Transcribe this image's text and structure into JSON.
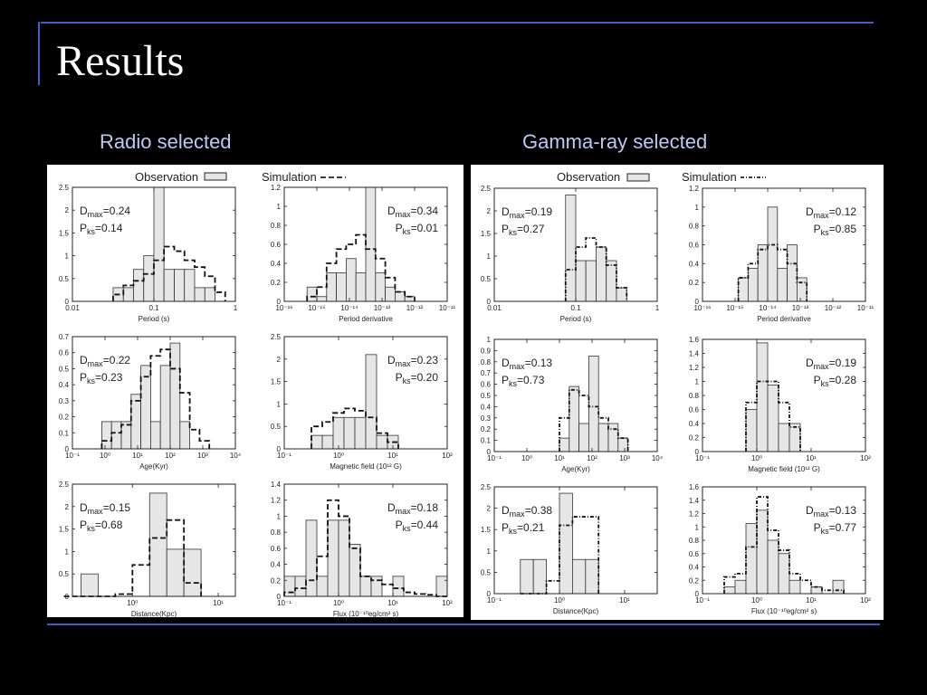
{
  "slide": {
    "title": "Results",
    "panels": [
      {
        "heading": "Radio selected"
      },
      {
        "heading": "Gamma-ray selected"
      }
    ],
    "legend": {
      "observation": "Observation",
      "simulation": "Simulation"
    }
  },
  "colors": {
    "background": "#000000",
    "accent_rule": "#3a62c4",
    "heading": "#bfc8f5",
    "bar_fill": "#e6e6e6"
  },
  "chart_data": [
    {
      "type": "bar",
      "panel": 0,
      "xlabel": "Period (s)",
      "xscale": "log",
      "xlim": [
        0.01,
        1
      ],
      "ylim": [
        0,
        2.5
      ],
      "yticks": [
        0,
        0.5,
        1,
        1.5,
        2,
        2.5
      ],
      "xticks": [
        {
          "v": 0.01,
          "t": "0.01"
        },
        {
          "v": 0.1,
          "t": "0.1"
        },
        {
          "v": 1,
          "t": "1"
        }
      ],
      "stat": {
        "dmax": "0.24",
        "pks": "0.14"
      },
      "stat_pos": "left",
      "edges": [
        0.0316,
        0.0422,
        0.0562,
        0.075,
        0.1,
        0.133,
        0.178,
        0.237,
        0.316,
        0.422,
        0.562,
        0.75
      ],
      "obs": [
        0.3,
        0.3,
        0.7,
        1.0,
        2.5,
        0.7,
        0.7,
        0.7,
        0.3,
        0.3,
        0
      ],
      "sim": [
        0.15,
        0.35,
        0.45,
        0.6,
        0.9,
        1.2,
        1.1,
        0.9,
        0.75,
        0.55,
        0.2
      ]
    },
    {
      "type": "bar",
      "panel": 0,
      "xlabel": "Period derivative",
      "xscale": "log",
      "xlim": [
        -16,
        -11
      ],
      "ylim": [
        0,
        1.2
      ],
      "yticks": [
        0,
        0.2,
        0.4,
        0.6,
        0.8,
        1,
        1.2
      ],
      "xticks": [
        {
          "v": -16,
          "t": "10⁻¹⁶"
        },
        {
          "v": -15,
          "t": "10⁻¹⁵"
        },
        {
          "v": -14,
          "t": "10⁻¹⁴"
        },
        {
          "v": -13,
          "t": "10⁻¹³"
        },
        {
          "v": -12,
          "t": "10⁻¹²"
        },
        {
          "v": -11,
          "t": "10⁻¹¹"
        }
      ],
      "stat": {
        "dmax": "0.34",
        "pks": "0.01"
      },
      "stat_pos": "right",
      "edges": [
        -15.3,
        -15.0,
        -14.7,
        -14.4,
        -14.1,
        -13.8,
        -13.5,
        -13.2,
        -12.9,
        -12.6,
        -12.3,
        -12.0
      ],
      "obs": [
        0.15,
        0.05,
        0.3,
        0.3,
        0.45,
        0.3,
        1.2,
        0.3,
        0.15,
        0.1,
        0.05
      ],
      "sim": [
        0.05,
        0.15,
        0.4,
        0.55,
        0.6,
        0.7,
        0.55,
        0.45,
        0.25,
        0.1,
        0.05
      ]
    },
    {
      "type": "bar",
      "panel": 0,
      "xlabel": "Age(Kyr)",
      "xscale": "log",
      "xlim": [
        -1,
        4
      ],
      "ylim": [
        0,
        0.7
      ],
      "yticks": [
        0,
        0.1,
        0.2,
        0.3,
        0.4,
        0.5,
        0.6,
        0.7
      ],
      "xticks": [
        {
          "v": -1,
          "t": "10⁻¹"
        },
        {
          "v": 0,
          "t": "10⁰"
        },
        {
          "v": 1,
          "t": "10¹"
        },
        {
          "v": 2,
          "t": "10²"
        },
        {
          "v": 3,
          "t": "10³"
        },
        {
          "v": 4,
          "t": "10⁴"
        }
      ],
      "stat": {
        "dmax": "0.22",
        "pks": "0.23"
      },
      "stat_pos": "left",
      "edges": [
        -0.1,
        0.2,
        0.5,
        0.8,
        1.1,
        1.4,
        1.7,
        2.0,
        2.3,
        2.6,
        2.9,
        3.2
      ],
      "obs": [
        0.17,
        0.17,
        0.17,
        0.34,
        0.52,
        0.17,
        0.52,
        0.66,
        0.17,
        0,
        0
      ],
      "sim": [
        0.05,
        0.1,
        0.15,
        0.3,
        0.45,
        0.58,
        0.62,
        0.5,
        0.35,
        0.12,
        0.05
      ]
    },
    {
      "type": "bar",
      "panel": 0,
      "xlabel": "Magnetic field (10¹² G)",
      "xscale": "log",
      "xlim": [
        -1,
        2
      ],
      "ylim": [
        0,
        2.5
      ],
      "yticks": [
        0,
        0.5,
        1,
        1.5,
        2,
        2.5
      ],
      "xticks": [
        {
          "v": -1,
          "t": "10⁻¹"
        },
        {
          "v": 0,
          "t": "10⁰"
        },
        {
          "v": 1,
          "t": "10¹"
        },
        {
          "v": 2,
          "t": "10²"
        }
      ],
      "stat": {
        "dmax": "0.23",
        "pks": "0.20"
      },
      "stat_pos": "right",
      "edges": [
        -0.5,
        -0.3,
        -0.1,
        0.1,
        0.3,
        0.5,
        0.7,
        0.9,
        1.1
      ],
      "obs": [
        0.3,
        0.3,
        0.7,
        0.7,
        0.7,
        2.1,
        0.3,
        0.3
      ],
      "sim": [
        0.5,
        0.6,
        0.8,
        0.9,
        0.85,
        0.7,
        0.35,
        0.15
      ]
    },
    {
      "type": "bar",
      "panel": 0,
      "xlabel": "Distance(Kpc)",
      "xscale": "log",
      "xlim": [
        -0.7,
        1.2
      ],
      "ylim": [
        0,
        2.5
      ],
      "yticks": [
        0,
        0.5,
        1,
        1.5,
        2,
        2.5
      ],
      "xticks": [
        {
          "v": 0,
          "t": "10⁰"
        },
        {
          "v": 1,
          "t": "10¹"
        }
      ],
      "stat": {
        "dmax": "0.15",
        "pks": "0.68"
      },
      "stat_pos": "left",
      "edges": [
        -0.8,
        -0.6,
        -0.4,
        -0.2,
        0.0,
        0.2,
        0.4,
        0.6,
        0.8
      ],
      "obs": [
        0,
        0.5,
        0,
        0,
        0,
        2.3,
        1.05,
        1.05
      ],
      "sim": [
        0,
        0,
        0,
        0.05,
        0.7,
        1.3,
        1.7,
        0.3
      ]
    },
    {
      "type": "bar",
      "panel": 0,
      "xlabel": "Flux (10⁻¹⁰eg/cm² s)",
      "xscale": "log",
      "xlim": [
        -1,
        2
      ],
      "ylim": [
        0,
        1.4
      ],
      "yticks": [
        0,
        0.2,
        0.4,
        0.6,
        0.8,
        1,
        1.2,
        1.4
      ],
      "xticks": [
        {
          "v": -1,
          "t": "10⁻¹"
        },
        {
          "v": 0,
          "t": "10⁰"
        },
        {
          "v": 1,
          "t": "10¹"
        },
        {
          "v": 2,
          "t": "10²"
        }
      ],
      "stat": {
        "dmax": "0.18",
        "pks": "0.44"
      },
      "stat_pos": "right",
      "edges": [
        -1.0,
        -0.8,
        -0.6,
        -0.4,
        -0.2,
        0.0,
        0.2,
        0.4,
        0.6,
        0.8,
        1.0,
        1.2,
        1.4,
        1.6,
        1.8,
        2.0
      ],
      "obs": [
        0.25,
        0.25,
        0.95,
        0.25,
        0.95,
        0.95,
        0.65,
        0.25,
        0.25,
        0,
        0.25,
        0,
        0,
        0,
        0.25
      ],
      "sim": [
        0.05,
        0.1,
        0.2,
        0.5,
        1.2,
        1.0,
        0.6,
        0.25,
        0.2,
        0.15,
        0.1,
        0.05,
        0.03,
        0.02,
        0
      ]
    },
    {
      "type": "bar",
      "panel": 1,
      "xlabel": "Period (s)",
      "xscale": "log",
      "xlim": [
        0.01,
        1
      ],
      "ylim": [
        0,
        2.5
      ],
      "yticks": [
        0,
        0.5,
        1,
        1.5,
        2,
        2.5
      ],
      "xticks": [
        {
          "v": 0.01,
          "t": "0.01"
        },
        {
          "v": 0.1,
          "t": "0.1"
        },
        {
          "v": 1,
          "t": "1"
        }
      ],
      "stat": {
        "dmax": "0.19",
        "pks": "0.27"
      },
      "stat_pos": "left",
      "edges": [
        0.075,
        0.1,
        0.133,
        0.178,
        0.237,
        0.316,
        0.422
      ],
      "obs": [
        2.35,
        0.9,
        0.9,
        1.2,
        0.9,
        0.3
      ],
      "sim": [
        0.7,
        1.2,
        1.4,
        1.2,
        0.8,
        0.3
      ]
    },
    {
      "type": "bar",
      "panel": 1,
      "xlabel": "Period derivative",
      "xscale": "log",
      "xlim": [
        -16,
        -11
      ],
      "ylim": [
        0,
        1.2
      ],
      "yticks": [
        0,
        0.2,
        0.4,
        0.6,
        0.8,
        1,
        1.2
      ],
      "xticks": [
        {
          "v": -16,
          "t": "10⁻¹⁶"
        },
        {
          "v": -15,
          "t": "10⁻¹⁵"
        },
        {
          "v": -14,
          "t": "10⁻¹⁴"
        },
        {
          "v": -13,
          "t": "10⁻¹³"
        },
        {
          "v": -12,
          "t": "10⁻¹²"
        },
        {
          "v": -11,
          "t": "10⁻¹¹"
        }
      ],
      "stat": {
        "dmax": "0.12",
        "pks": "0.85"
      },
      "stat_pos": "right",
      "edges": [
        -14.9,
        -14.6,
        -14.3,
        -14.0,
        -13.7,
        -13.4,
        -13.1,
        -12.8
      ],
      "obs": [
        0.25,
        0.35,
        0.6,
        1.0,
        0.35,
        0.6,
        0.25
      ],
      "sim": [
        0.25,
        0.4,
        0.55,
        0.6,
        0.55,
        0.4,
        0.2
      ]
    },
    {
      "type": "bar",
      "panel": 1,
      "xlabel": "Age(Kyr)",
      "xscale": "log",
      "xlim": [
        -1,
        4
      ],
      "ylim": [
        0,
        1
      ],
      "yticks": [
        0,
        0.1,
        0.2,
        0.3,
        0.4,
        0.5,
        0.6,
        0.7,
        0.8,
        0.9,
        1
      ],
      "xticks": [
        {
          "v": -1,
          "t": "10⁻¹"
        },
        {
          "v": 0,
          "t": "10⁰"
        },
        {
          "v": 1,
          "t": "10¹"
        },
        {
          "v": 2,
          "t": "10²"
        },
        {
          "v": 3,
          "t": "10³"
        },
        {
          "v": 4,
          "t": "10⁴"
        }
      ],
      "stat": {
        "dmax": "0.13",
        "pks": "0.73"
      },
      "stat_pos": "left",
      "edges": [
        1.0,
        1.3,
        1.6,
        1.9,
        2.2,
        2.5,
        2.8,
        3.1
      ],
      "obs": [
        0.12,
        0.58,
        0.25,
        0.85,
        0.25,
        0.25,
        0.12
      ],
      "sim": [
        0.3,
        0.55,
        0.5,
        0.4,
        0.3,
        0.2,
        0.12
      ]
    },
    {
      "type": "bar",
      "panel": 1,
      "xlabel": "Magnetic field (10¹² G)",
      "xscale": "log",
      "xlim": [
        -1,
        2
      ],
      "ylim": [
        0,
        1.6
      ],
      "yticks": [
        0,
        0.2,
        0.4,
        0.6,
        0.8,
        1,
        1.2,
        1.4,
        1.6
      ],
      "xticks": [
        {
          "v": -1,
          "t": "10⁻¹"
        },
        {
          "v": 0,
          "t": "10⁰"
        },
        {
          "v": 1,
          "t": "10¹"
        },
        {
          "v": 2,
          "t": "10²"
        }
      ],
      "stat": {
        "dmax": "0.19",
        "pks": "0.28"
      },
      "stat_pos": "right",
      "edges": [
        -0.2,
        0,
        0.2,
        0.4,
        0.6,
        0.8
      ],
      "obs": [
        0.6,
        1.55,
        0.95,
        0.4,
        0.4
      ],
      "sim": [
        0.7,
        1.0,
        1.0,
        0.7,
        0.35
      ]
    },
    {
      "type": "bar",
      "panel": 1,
      "xlabel": "Distance(Kpc)",
      "xscale": "log",
      "xlim": [
        -1,
        1.5
      ],
      "ylim": [
        0,
        2.5
      ],
      "yticks": [
        0,
        0.5,
        1,
        1.5,
        2,
        2.5
      ],
      "xticks": [
        {
          "v": -1,
          "t": "10⁻¹"
        },
        {
          "v": 0,
          "t": "10⁰"
        },
        {
          "v": 1,
          "t": "10¹"
        }
      ],
      "stat": {
        "dmax": "0.38",
        "pks": "0.21"
      },
      "stat_pos": "left",
      "edges": [
        -0.6,
        -0.4,
        -0.2,
        0.0,
        0.2,
        0.4,
        0.6
      ],
      "obs": [
        0.8,
        0.8,
        0,
        2.35,
        0.8,
        0.8
      ],
      "sim": [
        0,
        0,
        0.3,
        1.6,
        1.8,
        1.8
      ]
    },
    {
      "type": "bar",
      "panel": 1,
      "xlabel": "Flux (10⁻¹⁰eg/cm² s)",
      "xscale": "log",
      "xlim": [
        -1,
        2
      ],
      "ylim": [
        0,
        1.6
      ],
      "yticks": [
        0,
        0.2,
        0.4,
        0.6,
        0.8,
        1,
        1.2,
        1.4,
        1.6
      ],
      "xticks": [
        {
          "v": -1,
          "t": "10⁻¹"
        },
        {
          "v": 0,
          "t": "10⁰"
        },
        {
          "v": 1,
          "t": "10¹"
        },
        {
          "v": 2,
          "t": "10²"
        }
      ],
      "stat": {
        "dmax": "0.13",
        "pks": "0.77"
      },
      "stat_pos": "right",
      "edges": [
        -0.6,
        -0.4,
        -0.2,
        0.0,
        0.2,
        0.4,
        0.6,
        0.8,
        1.0,
        1.2,
        1.4,
        1.6
      ],
      "obs": [
        0.1,
        0.2,
        1.05,
        1.25,
        0.8,
        0.6,
        0.2,
        0,
        0.1,
        0,
        0.2
      ],
      "sim": [
        0.25,
        0.3,
        0.7,
        1.45,
        0.95,
        0.65,
        0.3,
        0.2,
        0.1,
        0.05,
        0.05
      ]
    }
  ]
}
